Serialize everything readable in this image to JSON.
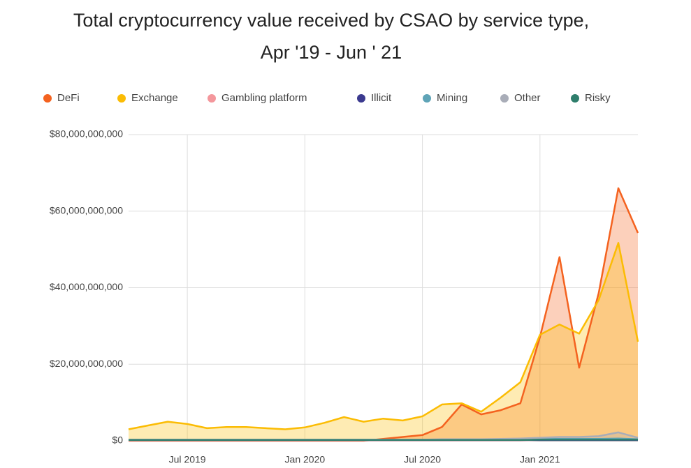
{
  "chart_data": {
    "type": "area",
    "title": "Total cryptocurrency value received by CSAO by service type,",
    "subtitle": "Apr '19 - Jun ' 21",
    "categories": [
      null,
      null,
      null,
      "Jul 2019",
      null,
      null,
      null,
      null,
      null,
      "Jan 2020",
      null,
      null,
      null,
      null,
      null,
      "Jul 2020",
      null,
      null,
      null,
      null,
      null,
      "Jan 2021",
      null,
      null,
      null,
      null,
      null
    ],
    "series": [
      {
        "name": "DeFi",
        "color": "#f4621f",
        "values": [
          0,
          0,
          0,
          0,
          0,
          0,
          0,
          0,
          0,
          0,
          0,
          0,
          0,
          500000000,
          1000000000,
          1500000000,
          3600000000,
          9500000000,
          6900000000,
          8000000000,
          9800000000,
          27100000000,
          48000000000,
          19100000000,
          38600000000,
          66000000000,
          54300000000
        ]
      },
      {
        "name": "Exchange",
        "color": "#fbbc04",
        "values": [
          3000000000,
          4000000000,
          5000000000,
          4400000000,
          3300000000,
          3600000000,
          3600000000,
          3300000000,
          3000000000,
          3500000000,
          4700000000,
          6200000000,
          5000000000,
          5800000000,
          5300000000,
          6400000000,
          9500000000,
          9800000000,
          7600000000,
          11300000000,
          15300000000,
          27700000000,
          30400000000,
          28000000000,
          36800000000,
          51700000000,
          25900000000
        ]
      },
      {
        "name": "Gambling platform",
        "color": "#f4979c",
        "values": [
          100000000,
          100000000,
          100000000,
          100000000,
          100000000,
          100000000,
          100000000,
          100000000,
          100000000,
          100000000,
          100000000,
          100000000,
          100000000,
          100000000,
          100000000,
          100000000,
          100000000,
          100000000,
          100000000,
          100000000,
          100000000,
          200000000,
          200000000,
          200000000,
          200000000,
          200000000,
          200000000
        ]
      },
      {
        "name": "Illicit",
        "color": "#3b3a8f",
        "values": [
          200000000,
          200000000,
          200000000,
          200000000,
          200000000,
          200000000,
          200000000,
          200000000,
          200000000,
          200000000,
          200000000,
          200000000,
          200000000,
          200000000,
          200000000,
          200000000,
          200000000,
          200000000,
          200000000,
          200000000,
          200000000,
          200000000,
          200000000,
          200000000,
          200000000,
          200000000,
          200000000
        ]
      },
      {
        "name": "Mining",
        "color": "#5fa4b7",
        "values": [
          300000000,
          300000000,
          300000000,
          300000000,
          300000000,
          300000000,
          300000000,
          300000000,
          300000000,
          300000000,
          300000000,
          300000000,
          300000000,
          300000000,
          300000000,
          300000000,
          300000000,
          300000000,
          300000000,
          400000000,
          400000000,
          500000000,
          500000000,
          500000000,
          500000000,
          600000000,
          400000000
        ]
      },
      {
        "name": "Other",
        "color": "#a9adb8",
        "values": [
          300000000,
          300000000,
          300000000,
          300000000,
          300000000,
          300000000,
          300000000,
          300000000,
          300000000,
          300000000,
          300000000,
          300000000,
          300000000,
          300000000,
          300000000,
          300000000,
          400000000,
          400000000,
          400000000,
          500000000,
          600000000,
          800000000,
          1000000000,
          1000000000,
          1200000000,
          2200000000,
          800000000
        ]
      },
      {
        "name": "Risky",
        "color": "#2f7e6c",
        "values": [
          200000000,
          200000000,
          200000000,
          200000000,
          200000000,
          200000000,
          200000000,
          200000000,
          200000000,
          200000000,
          200000000,
          200000000,
          200000000,
          200000000,
          200000000,
          200000000,
          200000000,
          200000000,
          200000000,
          200000000,
          200000000,
          300000000,
          300000000,
          300000000,
          300000000,
          300000000,
          300000000
        ]
      }
    ],
    "ylim": [
      0,
      80000000000
    ],
    "yticks": [
      {
        "value": 0,
        "label": "$0"
      },
      {
        "value": 20000000000,
        "label": "$20,000,000,000"
      },
      {
        "value": 40000000000,
        "label": "$40,000,000,000"
      },
      {
        "value": 60000000000,
        "label": "$60,000,000,000"
      },
      {
        "value": 80000000000,
        "label": "$80,000,000,000"
      }
    ],
    "grid": true,
    "legend": "top"
  }
}
